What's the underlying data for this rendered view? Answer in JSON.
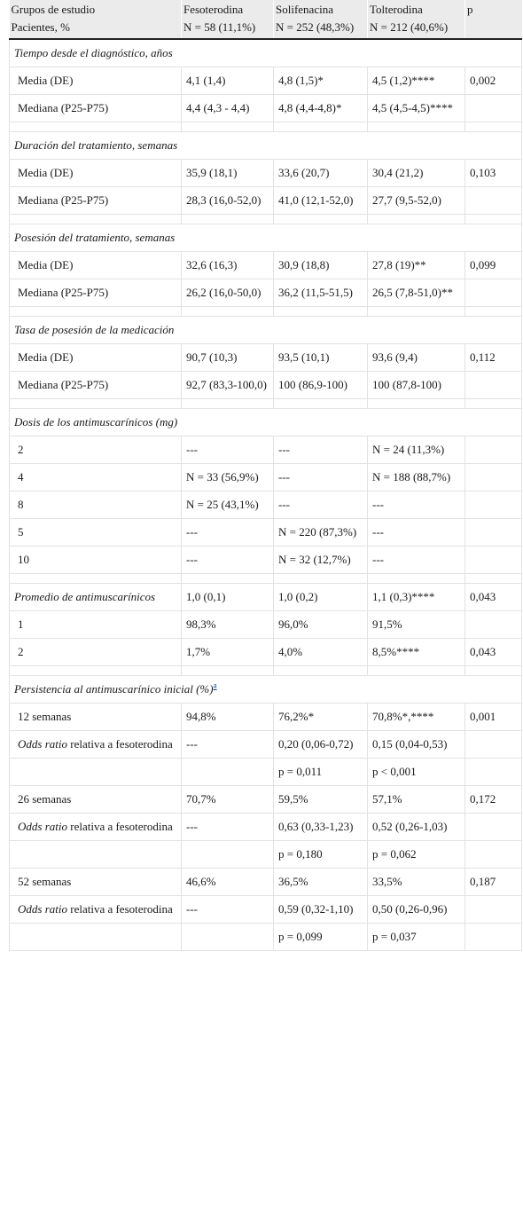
{
  "header": {
    "col1_line1": "Grupos de estudio",
    "col1_line2": "Pacientes, %",
    "groups": [
      {
        "name": "Fesoterodina",
        "n": "N = 58 (11,1%)"
      },
      {
        "name": "Solifenacina",
        "n": "N = 252 (48,3%)"
      },
      {
        "name": "Tolterodina",
        "n": "N = 212 (40,6%)"
      }
    ],
    "p_label": "p"
  },
  "sections": [
    {
      "title": "Tiempo desde el diagnóstico, años",
      "rows": [
        {
          "label": "Media (DE)",
          "fes": "4,1 (1,4)",
          "sol": "4,8 (1,5)*",
          "tol": "4,5 (1,2)****",
          "p": "0,002"
        },
        {
          "label": "Mediana (P25-P75)",
          "fes": "4,4 (4,3 - 4,4)",
          "sol": "4,8 (4,4-4,8)*",
          "tol": "4,5 (4,5-4,5)****",
          "p": ""
        }
      ]
    },
    {
      "title": "Duración del tratamiento, semanas",
      "rows": [
        {
          "label": "Media (DE)",
          "fes": "35,9 (18,1)",
          "sol": "33,6 (20,7)",
          "tol": "30,4 (21,2)",
          "p": "0,103"
        },
        {
          "label": "Mediana (P25-P75)",
          "fes": "28,3 (16,0-52,0)",
          "sol": "41,0 (12,1-52,0)",
          "tol": "27,7 (9,5-52,0)",
          "p": ""
        }
      ]
    },
    {
      "title": "Posesión del tratamiento, semanas",
      "rows": [
        {
          "label": "Media (DE)",
          "fes": "32,6 (16,3)",
          "sol": "30,9 (18,8)",
          "tol": "27,8 (19)**",
          "p": "0,099"
        },
        {
          "label": "Mediana (P25-P75)",
          "fes": "26,2 (16,0-50,0)",
          "sol": "36,2 (11,5-51,5)",
          "tol": "26,5 (7,8-51,0)**",
          "p": ""
        }
      ]
    },
    {
      "title": "Tasa de posesión de la medicación",
      "rows": [
        {
          "label": "Media (DE)",
          "fes": "90,7 (10,3)",
          "sol": "93,5 (10,1)",
          "tol": "93,6 (9,4)",
          "p": "0,112"
        },
        {
          "label": "Mediana (P25-P75)",
          "fes": "92,7 (83,3-100,0)",
          "sol": "100 (86,9-100)",
          "tol": "100 (87,8-100)",
          "p": ""
        }
      ]
    },
    {
      "title": "Dosis de los antimuscarínicos (mg)",
      "rows": [
        {
          "label": "2",
          "fes": "---",
          "sol": "---",
          "tol": "N = 24 (11,3%)",
          "p": ""
        },
        {
          "label": "4",
          "fes": "N = 33 (56,9%)",
          "sol": "---",
          "tol": "N = 188 (88,7%)",
          "p": ""
        },
        {
          "label": "8",
          "fes": "N = 25 (43,1%)",
          "sol": "---",
          "tol": "---",
          "p": ""
        },
        {
          "label": "5",
          "fes": "---",
          "sol": "N = 220 (87,3%)",
          "tol": "---",
          "p": ""
        },
        {
          "label": "10",
          "fes": "---",
          "sol": "N = 32 (12,7%)",
          "tol": "---",
          "p": ""
        }
      ]
    },
    {
      "title": "Promedio de antimuscarínicos",
      "title_values": {
        "fes": "1,0 (0,1)",
        "sol": "1,0 (0,2)",
        "tol": "1,1 (0,3)****",
        "p": "0,043"
      },
      "rows": [
        {
          "label": "1",
          "fes": "98,3%",
          "sol": "96,0%",
          "tol": "91,5%",
          "p": ""
        },
        {
          "label": "2",
          "fes": "1,7%",
          "sol": "4,0%",
          "tol": "8,5%****",
          "p": "0,043"
        }
      ]
    },
    {
      "title": "Persistencia al antimuscarínico inicial (%)",
      "footnote": "a",
      "rows": [
        {
          "label": "12 semanas",
          "fes": "94,8%",
          "sol": "76,2%*",
          "tol": "70,8%*,****",
          "p": "0,001"
        },
        {
          "label_it": "Odds ratio",
          "label": " relativa a fesoterodina",
          "fes": "---",
          "sol": "0,20 (0,06-0,72)",
          "tol": "0,15 (0,04-0,53)",
          "p": ""
        },
        {
          "label": "",
          "fes": "",
          "sol": "p = 0,011",
          "tol": "p < 0,001",
          "p": ""
        },
        {
          "label": "26 semanas",
          "fes": "70,7%",
          "sol": "59,5%",
          "tol": "57,1%",
          "p": "0,172"
        },
        {
          "label_it": "Odds ratio",
          "label": " relativa a fesoterodina",
          "fes": "---",
          "sol": "0,63 (0,33-1,23)",
          "tol": "0,52 (0,26-1,03)",
          "p": ""
        },
        {
          "label": "",
          "fes": "",
          "sol": "p = 0,180",
          "tol": "p = 0,062",
          "p": ""
        },
        {
          "label": "52 semanas",
          "fes": "46,6%",
          "sol": "36,5%",
          "tol": "33,5%",
          "p": "0,187"
        },
        {
          "label_it": "Odds ratio",
          "label": " relativa a fesoterodina",
          "fes": "---",
          "sol": "0,59 (0,32-1,10)",
          "tol": "0,50 (0,26-0,96)",
          "p": ""
        },
        {
          "label": "",
          "fes": "",
          "sol": "p = 0,099",
          "tol": "p = 0,037",
          "p": ""
        }
      ]
    }
  ]
}
